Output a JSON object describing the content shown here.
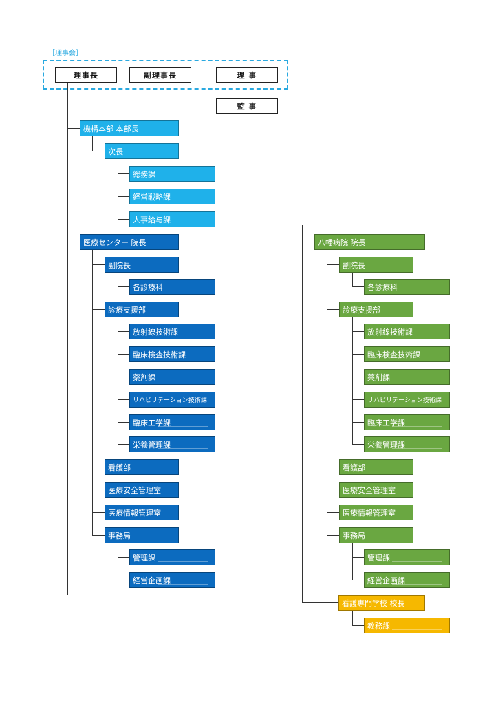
{
  "board": {
    "label": "［理事会］",
    "chairman": "理事長",
    "vice_chairman": "副理事長",
    "director": "理 事"
  },
  "auditor": "監 事",
  "headquarters": {
    "title": "機構本部 本部長",
    "deputy": "次長",
    "sections": [
      "総務課",
      "経営戦略課",
      "人事給与課"
    ]
  },
  "medical_center": {
    "title": "医療センター 院長",
    "vice_director": "副院長",
    "clinical_depts": "各診療科",
    "support_dept": "診療支援部",
    "support_sections": [
      "放射線技術課",
      "臨床検査技術課",
      "薬剤課",
      "リハビリテーション技術課",
      "臨床工学課",
      "栄養管理課"
    ],
    "nursing": "看護部",
    "safety": "医療安全管理室",
    "info": "医療情報管理室",
    "admin_bureau": "事務局",
    "admin_sections": [
      "管理課",
      "経営企画課"
    ]
  },
  "yawata_hospital": {
    "title": "八幡病院 院長",
    "vice_director": "副院長",
    "clinical_depts": "各診療科",
    "support_dept": "診療支援部",
    "support_sections": [
      "放射線技術課",
      "臨床検査技術課",
      "薬剤課",
      "リハビリテーション技術課",
      "臨床工学課",
      "栄養管理課"
    ],
    "nursing": "看護部",
    "safety": "医療安全管理室",
    "info": "医療情報管理室",
    "admin_bureau": "事務局",
    "admin_sections": [
      "管理課",
      "経営企画課"
    ]
  },
  "nursing_school": {
    "title": "看護専門学校 校長",
    "section": "教務課"
  },
  "colors": {
    "board_frame": "#29a9e0",
    "headquarters": "#1fb1ea",
    "medical_center": "#0c6bbf",
    "yawata_hospital": "#6aa741",
    "nursing_school": "#f6b800"
  }
}
